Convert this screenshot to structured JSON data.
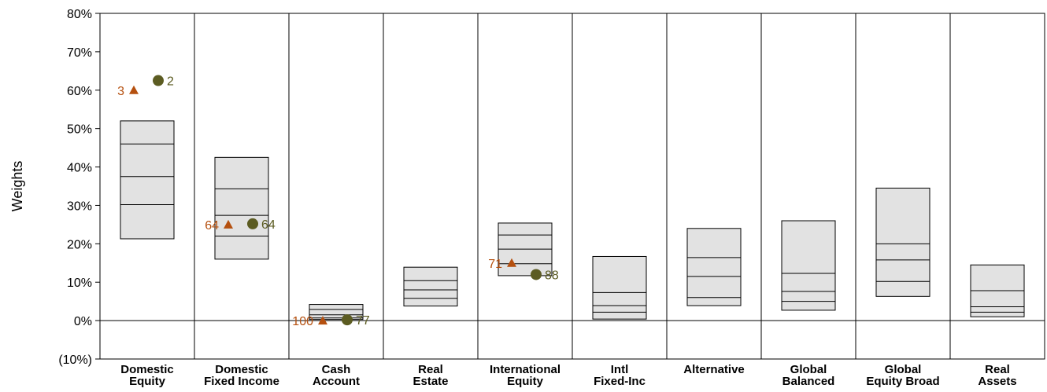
{
  "chart_data": {
    "type": "box",
    "title": "",
    "ylabel": "Weights",
    "xlabel": "",
    "ylim": [
      -10,
      80
    ],
    "yticks": [
      {
        "value": -10,
        "label": "(10%)",
        "color": "#cc0000"
      },
      {
        "value": 0,
        "label": "0%",
        "color": "#000000"
      },
      {
        "value": 10,
        "label": "10%",
        "color": "#000000"
      },
      {
        "value": 20,
        "label": "20%",
        "color": "#000000"
      },
      {
        "value": 30,
        "label": "30%",
        "color": "#000000"
      },
      {
        "value": 40,
        "label": "40%",
        "color": "#000000"
      },
      {
        "value": 50,
        "label": "50%",
        "color": "#000000"
      },
      {
        "value": 60,
        "label": "60%",
        "color": "#000000"
      },
      {
        "value": 70,
        "label": "70%",
        "color": "#000000"
      },
      {
        "value": 80,
        "label": "80%",
        "color": "#000000"
      }
    ],
    "categories": [
      {
        "lines": [
          "Domestic",
          "Equity"
        ],
        "box": [
          21.3,
          30.2,
          37.5,
          46.0,
          52.0
        ]
      },
      {
        "lines": [
          "Domestic",
          "Fixed Income"
        ],
        "box": [
          16.0,
          22.0,
          27.4,
          34.3,
          42.5
        ]
      },
      {
        "lines": [
          "Cash",
          "Account"
        ],
        "box": [
          0.3,
          0.7,
          1.5,
          2.9,
          4.2
        ]
      },
      {
        "lines": [
          "Real",
          "Estate"
        ],
        "box": [
          3.8,
          5.8,
          8.0,
          10.4,
          13.9
        ]
      },
      {
        "lines": [
          "International",
          "Equity"
        ],
        "box": [
          11.7,
          14.8,
          18.6,
          22.3,
          25.4
        ]
      },
      {
        "lines": [
          "Intl",
          "Fixed-Inc"
        ],
        "box": [
          0.4,
          2.2,
          3.9,
          7.3,
          16.7
        ]
      },
      {
        "lines": [
          "Alternative"
        ],
        "box": [
          3.9,
          6.0,
          11.5,
          16.4,
          24.0
        ]
      },
      {
        "lines": [
          "Global",
          "Balanced"
        ],
        "box": [
          2.7,
          5.0,
          7.6,
          12.3,
          26.0
        ]
      },
      {
        "lines": [
          "Global",
          "Equity Broad"
        ],
        "box": [
          6.3,
          10.2,
          15.8,
          20.0,
          34.5
        ]
      },
      {
        "lines": [
          "Real",
          "Assets"
        ],
        "box": [
          1.0,
          2.2,
          3.6,
          7.8,
          14.5
        ]
      }
    ],
    "markers": [
      {
        "category": 0,
        "shape": "triangle",
        "color": "#b5500f",
        "value": 60.0,
        "label": "3",
        "label_side": "left"
      },
      {
        "category": 0,
        "shape": "circle",
        "color": "#5c5c22",
        "value": 62.5,
        "label": "2",
        "label_side": "right"
      },
      {
        "category": 1,
        "shape": "triangle",
        "color": "#b5500f",
        "value": 25.0,
        "label": "64",
        "label_side": "left"
      },
      {
        "category": 1,
        "shape": "circle",
        "color": "#5c5c22",
        "value": 25.2,
        "label": "64",
        "label_side": "right"
      },
      {
        "category": 2,
        "shape": "triangle",
        "color": "#b5500f",
        "value": 0.0,
        "label": "100",
        "label_side": "left"
      },
      {
        "category": 2,
        "shape": "circle",
        "color": "#5c5c22",
        "value": 0.2,
        "label": "77",
        "label_side": "right"
      },
      {
        "category": 4,
        "shape": "triangle",
        "color": "#b5500f",
        "value": 15.0,
        "label": "71",
        "label_side": "left"
      },
      {
        "category": 4,
        "shape": "circle",
        "color": "#5c5c22",
        "value": 12.0,
        "label": "88",
        "label_side": "right"
      }
    ],
    "grid": false,
    "legend": "none",
    "box_fill": "#e2e2e2",
    "box_stroke": "#000000"
  }
}
